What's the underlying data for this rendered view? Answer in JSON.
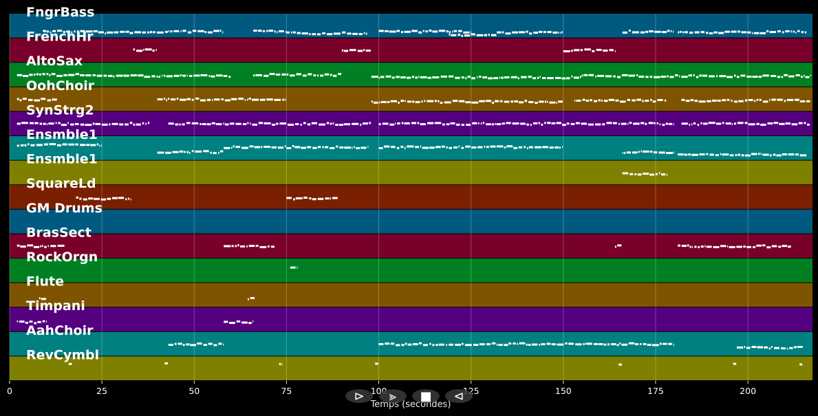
{
  "chart_data": {
    "type": "piano-roll",
    "xlabel": "Temps (secondes)",
    "xlim": [
      0,
      217.5
    ],
    "x_ticks": [
      0,
      25,
      50,
      75,
      100,
      125,
      150,
      175,
      200
    ],
    "grid": true,
    "tracks": [
      {
        "name": "FngrBass",
        "color": "#005a80",
        "notes": [
          [
            9,
            10,
            0.7
          ],
          [
            10,
            24,
            0.73
          ],
          [
            24,
            38,
            0.77
          ],
          [
            38,
            43,
            0.73
          ],
          [
            43,
            58,
            0.73
          ],
          [
            66,
            75,
            0.73
          ],
          [
            75,
            97,
            0.8
          ],
          [
            100,
            125,
            0.73
          ],
          [
            119,
            132,
            0.87
          ],
          [
            132,
            150,
            0.77
          ],
          [
            166,
            180,
            0.73
          ],
          [
            181,
            205,
            0.77
          ],
          [
            205,
            216,
            0.73
          ]
        ]
      },
      {
        "name": "FrenchHr",
        "color": "#78002a",
        "notes": [
          [
            33.5,
            40,
            0.5
          ],
          [
            90,
            98,
            0.5
          ],
          [
            150,
            164,
            0.5
          ]
        ]
      },
      {
        "name": "AltoSax",
        "color": "#008023",
        "notes": [
          [
            2,
            28,
            0.5
          ],
          [
            28,
            60,
            0.55
          ],
          [
            66,
            90,
            0.5
          ],
          [
            98,
            155,
            0.6
          ],
          [
            155,
            217,
            0.55
          ]
        ]
      },
      {
        "name": "OohChoir",
        "color": "#7f5400",
        "notes": [
          [
            2,
            13,
            0.5
          ],
          [
            40,
            75,
            0.5
          ],
          [
            98,
            150,
            0.6
          ],
          [
            153,
            178,
            0.55
          ],
          [
            182,
            217,
            0.55
          ]
        ]
      },
      {
        "name": "SynStrg2",
        "color": "#55007f",
        "notes": [
          [
            2,
            38,
            0.5
          ],
          [
            43,
            98,
            0.5
          ],
          [
            100,
            180,
            0.5
          ],
          [
            182,
            217,
            0.5
          ]
        ]
      },
      {
        "name": "Ensmble1",
        "color": "#008080",
        "notes": [
          [
            2,
            25,
            0.35
          ],
          [
            40,
            58,
            0.65
          ],
          [
            58,
            75,
            0.45
          ],
          [
            75,
            97,
            0.45
          ],
          [
            100,
            150,
            0.45
          ],
          [
            166,
            180,
            0.65
          ],
          [
            181,
            216,
            0.75
          ]
        ]
      },
      {
        "name": "Ensmble1",
        "color": "#808000",
        "notes": [
          [
            166,
            178,
            0.55
          ]
        ]
      },
      {
        "name": "SquareLd",
        "color": "#7a2000",
        "notes": [
          [
            18,
            33,
            0.55
          ],
          [
            75,
            89,
            0.55
          ]
        ]
      },
      {
        "name": "GM Drums",
        "color": "#005a80",
        "notes": []
      },
      {
        "name": "BrasSect",
        "color": "#78002a",
        "notes": [
          [
            2,
            15,
            0.5
          ],
          [
            58,
            72,
            0.5
          ],
          [
            164,
            166,
            0.5
          ],
          [
            181,
            212,
            0.5
          ]
        ]
      },
      {
        "name": "RockOrgn",
        "color": "#008023",
        "notes": [
          [
            76,
            78,
            0.4
          ]
        ]
      },
      {
        "name": "Flute",
        "color": "#7f5400",
        "notes": [
          [
            8,
            10,
            0.65
          ],
          [
            64.5,
            66.5,
            0.65
          ]
        ]
      },
      {
        "name": "Timpani",
        "color": "#55007f",
        "notes": [
          [
            2,
            10,
            0.6
          ],
          [
            58,
            66,
            0.6
          ]
        ]
      },
      {
        "name": "AahChoir",
        "color": "#008080",
        "notes": [
          [
            43,
            58,
            0.5
          ],
          [
            100,
            180,
            0.5
          ],
          [
            197,
            215,
            0.65
          ]
        ]
      },
      {
        "name": "RevCymbl",
        "color": "#808000",
        "notes": [
          [
            16,
            17,
            0.3
          ],
          [
            42,
            43,
            0.3
          ],
          [
            73,
            74,
            0.3
          ],
          [
            99,
            100,
            0.3
          ],
          [
            165,
            166,
            0.3
          ],
          [
            196,
            197,
            0.3
          ],
          [
            214,
            215,
            0.3
          ]
        ]
      }
    ]
  },
  "controls": [
    {
      "name": "play-button",
      "glyph": "⊳"
    },
    {
      "name": "forward-button",
      "glyph": "⪢"
    },
    {
      "name": "stop-button",
      "glyph": "■"
    },
    {
      "name": "back-button",
      "glyph": "⊲"
    }
  ]
}
